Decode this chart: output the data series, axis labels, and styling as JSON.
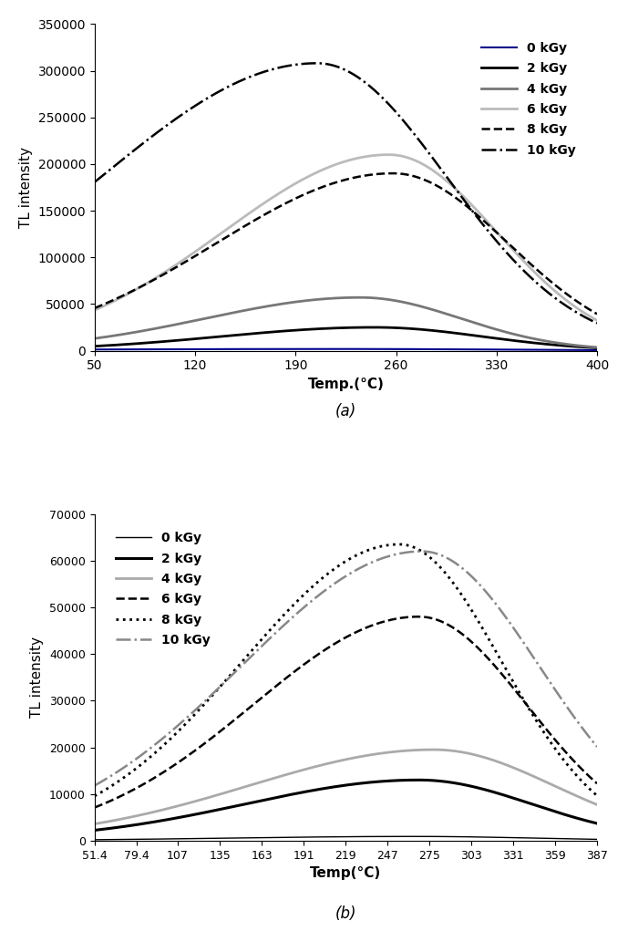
{
  "panel_a": {
    "title": "(a)",
    "xlabel": "Temp.(°C)",
    "ylabel": "TL intensity",
    "xlim": [
      50,
      400
    ],
    "ylim": [
      0,
      350000
    ],
    "yticks": [
      0,
      50000,
      100000,
      150000,
      200000,
      250000,
      300000,
      350000
    ],
    "xticks": [
      50,
      120,
      190,
      260,
      330,
      400
    ],
    "series": [
      {
        "label": "0 kGy",
        "color": "#00008B",
        "linestyle": "solid",
        "linewidth": 1.5,
        "peak_temp": 220,
        "peak_val": 1800,
        "sigma": 120,
        "rise_skew": 0.6
      },
      {
        "label": "2 kGy",
        "color": "#000000",
        "linestyle": "solid",
        "linewidth": 2.0,
        "peak_temp": 245,
        "peak_val": 25000,
        "sigma": 75,
        "rise_skew": 0.7
      },
      {
        "label": "4 kGy",
        "color": "#777777",
        "linestyle": "solid",
        "linewidth": 2.0,
        "peak_temp": 235,
        "peak_val": 57000,
        "sigma": 70,
        "rise_skew": 0.65
      },
      {
        "label": "6 kGy",
        "color": "#bbbbbb",
        "linestyle": "solid",
        "linewidth": 2.0,
        "peak_temp": 255,
        "peak_val": 210000,
        "sigma": 75,
        "rise_skew": 0.65
      },
      {
        "label": "8 kGy",
        "color": "#000000",
        "linestyle": "dashed",
        "linewidth": 1.8,
        "peak_temp": 258,
        "peak_val": 190000,
        "sigma": 80,
        "rise_skew": 0.65
      },
      {
        "label": "10 kGy",
        "color": "#000000",
        "linestyle": "dashdot",
        "linewidth": 1.8,
        "peak_temp": 205,
        "peak_val": 308000,
        "sigma": 90,
        "rise_skew": 0.6
      }
    ]
  },
  "panel_b": {
    "title": "(b)",
    "xlabel": "Temp(°C)",
    "ylabel": "TL intensity",
    "xlim": [
      51.4,
      387
    ],
    "ylim": [
      0,
      70000
    ],
    "yticks": [
      0,
      10000,
      20000,
      30000,
      40000,
      50000,
      60000,
      70000
    ],
    "xticks": [
      51.4,
      79.4,
      107,
      135,
      163,
      191,
      219,
      247,
      275,
      303,
      331,
      359,
      387
    ],
    "xtick_labels": [
      "51.4",
      "79.4",
      "107",
      "135",
      "163",
      "191",
      "219",
      "247",
      "275",
      "303",
      "331",
      "359",
      "387"
    ],
    "series": [
      {
        "label": "0 kGy",
        "color": "#000000",
        "linestyle": "solid",
        "linewidth": 1.0,
        "peak_temp": 265,
        "peak_val": 900,
        "sigma": 80,
        "rise_skew": 0.65
      },
      {
        "label": "2 kGy",
        "color": "#000000",
        "linestyle": "solid",
        "linewidth": 2.2,
        "peak_temp": 268,
        "peak_val": 13000,
        "sigma": 75,
        "rise_skew": 0.65
      },
      {
        "label": "4 kGy",
        "color": "#aaaaaa",
        "linestyle": "solid",
        "linewidth": 2.0,
        "peak_temp": 278,
        "peak_val": 19500,
        "sigma": 80,
        "rise_skew": 0.65
      },
      {
        "label": "6 kGy",
        "color": "#000000",
        "linestyle": "dashed",
        "linewidth": 1.8,
        "peak_temp": 268,
        "peak_val": 48000,
        "sigma": 72,
        "rise_skew": 0.65
      },
      {
        "label": "8 kGy",
        "color": "#000000",
        "linestyle": "dotted",
        "linewidth": 2.0,
        "peak_temp": 255,
        "peak_val": 63500,
        "sigma": 68,
        "rise_skew": 0.65
      },
      {
        "label": "10 kGy",
        "color": "#888888",
        "linestyle": "dashdot",
        "linewidth": 1.8,
        "peak_temp": 270,
        "peak_val": 62000,
        "sigma": 78,
        "rise_skew": 0.65
      }
    ]
  }
}
